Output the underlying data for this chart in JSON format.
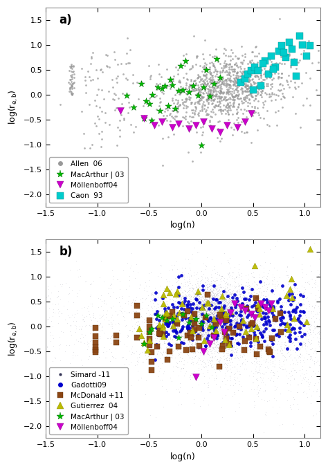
{
  "panel_a": {
    "label": "a)",
    "xlim": [
      -1.5,
      1.15
    ],
    "ylim": [
      -2.25,
      1.75
    ],
    "xlabel": "log(n)",
    "ylabel": "log(r_{e,b})",
    "yticks": [
      -2.0,
      -1.5,
      -1.0,
      -0.5,
      0.0,
      0.5,
      1.0,
      1.5
    ],
    "xticks": [
      -1.5,
      -1.0,
      -0.5,
      0.0,
      0.5,
      1.0
    ]
  },
  "panel_b": {
    "label": "b)",
    "xlim": [
      -1.5,
      1.15
    ],
    "ylim": [
      -2.25,
      1.75
    ],
    "xlabel": "log(n)",
    "ylabel": "log(r_{e,b})",
    "yticks": [
      -2.0,
      -1.5,
      -1.0,
      -0.5,
      0.0,
      0.5,
      1.0,
      1.5
    ],
    "xticks": [
      -1.5,
      -1.0,
      -0.5,
      0.0,
      0.5,
      1.0
    ]
  },
  "bg_color": "#ffffff",
  "face_color": "#ffffff",
  "allen_color": "#999999",
  "macarthur_color": "#00bb00",
  "mollenhoff_color": "#cc00cc",
  "caon_color": "#00cccc",
  "simard_color": "#333355",
  "gadotti_color": "#0000cc",
  "mcdonald_color": "#8B4513",
  "gutierrez_color": "#bbbb00",
  "spine_color": "#888888"
}
